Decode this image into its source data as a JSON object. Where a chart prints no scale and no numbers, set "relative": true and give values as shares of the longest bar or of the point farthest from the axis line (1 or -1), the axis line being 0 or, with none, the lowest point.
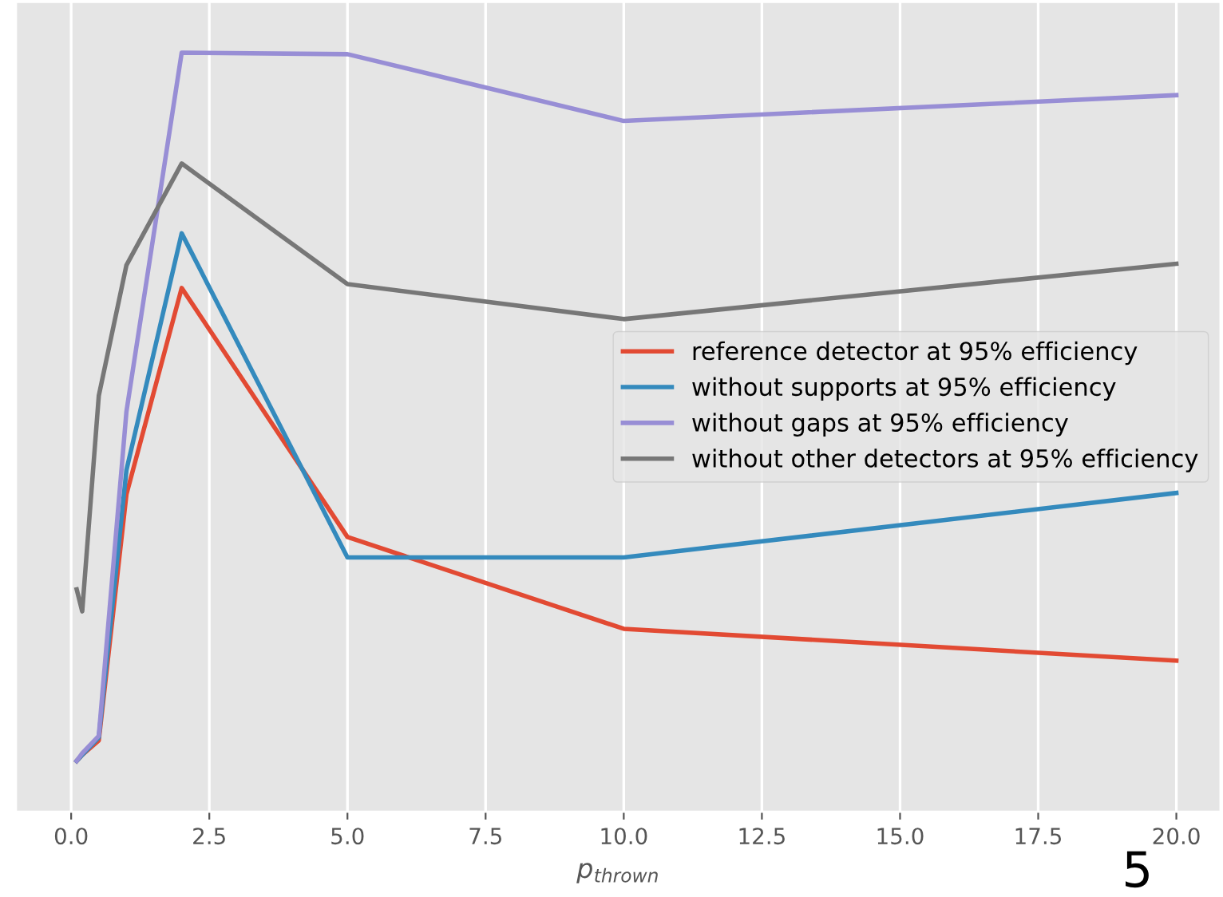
{
  "chart_data": {
    "type": "line",
    "xlabel": "p$_{thrown}$",
    "relative": true,
    "tick_labels": "x",
    "grid": true,
    "legend": "center right",
    "marker": "none",
    "line_style": "solid",
    "x": [
      0.1,
      0.2,
      0.5,
      1,
      2,
      5,
      10,
      20
    ],
    "xlim": [
      -1.0,
      20.8
    ],
    "xticks": [
      {
        "value": 0,
        "label": "0.0"
      },
      2.5,
      {
        "value": 5,
        "label": "5.0"
      },
      7.5,
      {
        "value": 10,
        "label": "10.0"
      },
      12.5,
      {
        "value": 15,
        "label": "15.0"
      },
      17.5,
      {
        "value": 20,
        "label": "20.0"
      }
    ],
    "series": [
      {
        "name": "reference detector at 95% efficiency",
        "color": "#e24a33",
        "values": [
          0.067,
          0.075,
          0.094,
          0.418,
          0.69,
          0.362,
          0.241,
          0.199
        ]
      },
      {
        "name": "without supports at 95% efficiency",
        "color": "#348abd",
        "values": [
          0.067,
          0.075,
          0.098,
          0.45,
          0.762,
          0.335,
          0.335,
          0.42
        ]
      },
      {
        "name": "without gaps at 95% efficiency",
        "color": "#988ed5",
        "values": [
          0.067,
          0.077,
          0.1,
          0.527,
          1,
          0.998,
          0.91,
          0.944
        ]
      },
      {
        "name": "without other detectors at 95% efficiency",
        "color": "#777777",
        "values": [
          0.293,
          0.264,
          0.548,
          0.72,
          0.854,
          0.695,
          0.649,
          0.722
        ]
      }
    ],
    "annotations": [
      "5"
    ]
  }
}
